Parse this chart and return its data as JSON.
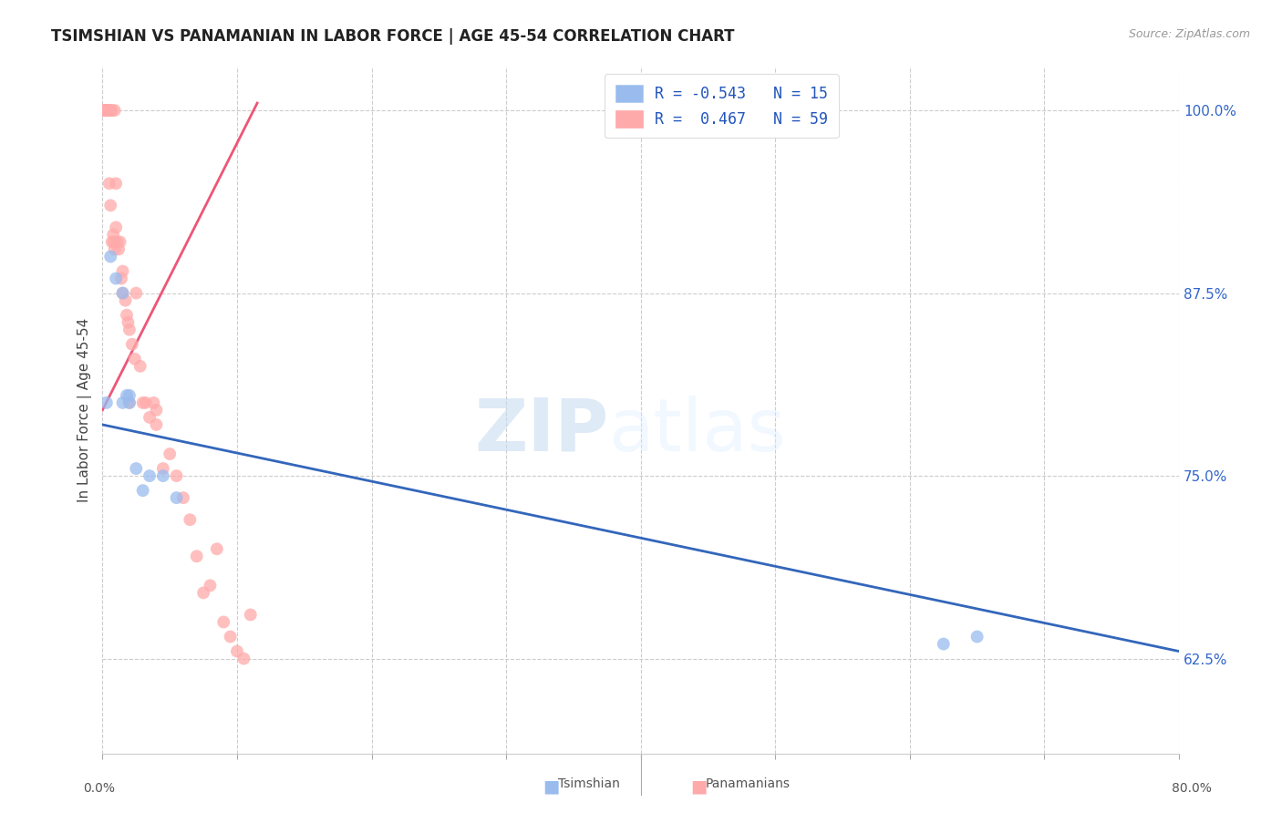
{
  "title": "TSIMSHIAN VS PANAMANIAN IN LABOR FORCE | AGE 45-54 CORRELATION CHART",
  "source": "Source: ZipAtlas.com",
  "ylabel": "In Labor Force | Age 45-54",
  "y_ticks": [
    62.5,
    75.0,
    87.5,
    100.0
  ],
  "y_tick_labels": [
    "62.5%",
    "75.0%",
    "87.5%",
    "100.0%"
  ],
  "xlim": [
    0.0,
    80.0
  ],
  "ylim": [
    56.0,
    103.0
  ],
  "legend_blue_label": "R = -0.543   N = 15",
  "legend_pink_label": "R =  0.467   N = 59",
  "footer_blue": "Tsimshian",
  "footer_pink": "Panamanians",
  "blue_color": "#99BBEE",
  "pink_color": "#FFAAAA",
  "blue_line_color": "#3366BB",
  "pink_line_color": "#EE5577",
  "watermark_text": "ZIP",
  "watermark_text2": "atlas",
  "tsimshian_x": [
    0.3,
    0.6,
    1.0,
    1.5,
    1.5,
    1.8,
    2.0,
    2.0,
    2.5,
    3.5,
    4.5,
    5.5,
    62.5,
    65.0,
    3.0
  ],
  "tsimshian_y": [
    80.0,
    90.0,
    88.5,
    80.0,
    87.5,
    80.5,
    80.5,
    80.0,
    75.5,
    75.0,
    75.0,
    73.5,
    63.5,
    64.0,
    74.0
  ],
  "panamanian_x": [
    0.05,
    0.1,
    0.15,
    0.15,
    0.2,
    0.2,
    0.25,
    0.3,
    0.3,
    0.35,
    0.4,
    0.4,
    0.5,
    0.5,
    0.6,
    0.6,
    0.7,
    0.7,
    0.8,
    0.85,
    0.9,
    0.9,
    1.0,
    1.0,
    1.1,
    1.2,
    1.3,
    1.4,
    1.5,
    1.5,
    1.7,
    1.8,
    1.9,
    2.0,
    2.0,
    2.2,
    2.4,
    2.5,
    2.8,
    3.0,
    3.2,
    3.5,
    3.8,
    4.0,
    4.0,
    4.5,
    5.0,
    5.5,
    6.0,
    6.5,
    7.0,
    7.5,
    8.0,
    8.5,
    9.0,
    9.5,
    10.0,
    10.5,
    11.0
  ],
  "panamanian_y": [
    100.0,
    100.0,
    100.0,
    100.0,
    100.0,
    100.0,
    100.0,
    100.0,
    100.0,
    100.0,
    100.0,
    100.0,
    95.0,
    100.0,
    93.5,
    100.0,
    91.0,
    100.0,
    91.5,
    91.0,
    90.5,
    100.0,
    92.0,
    95.0,
    91.0,
    90.5,
    91.0,
    88.5,
    87.5,
    89.0,
    87.0,
    86.0,
    85.5,
    85.0,
    80.0,
    84.0,
    83.0,
    87.5,
    82.5,
    80.0,
    80.0,
    79.0,
    80.0,
    79.5,
    78.5,
    75.5,
    76.5,
    75.0,
    73.5,
    72.0,
    69.5,
    67.0,
    67.5,
    70.0,
    65.0,
    64.0,
    63.0,
    62.5,
    65.5
  ],
  "blue_trend_x0": 0.0,
  "blue_trend_x1": 80.0,
  "blue_trend_y0": 78.5,
  "blue_trend_y1": 63.0,
  "pink_trend_x0": 0.0,
  "pink_trend_x1": 11.5,
  "pink_trend_y0": 79.5,
  "pink_trend_y1": 100.5
}
